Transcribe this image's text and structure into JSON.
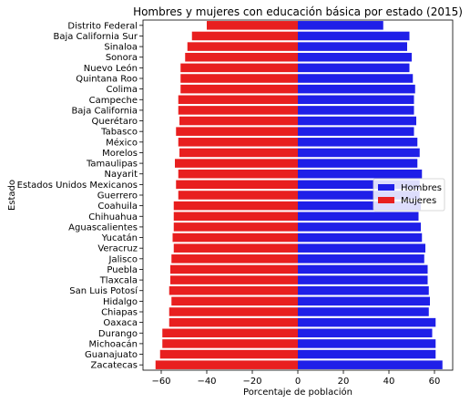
{
  "chart_data": {
    "type": "bar",
    "orientation": "horizontal",
    "title": "Hombres y mujeres con educación básica por estado (2015)",
    "xlabel": "Porcentaje de población",
    "ylabel": "Estado",
    "xlim": [
      -68,
      68
    ],
    "xticks": [
      -60,
      -40,
      -20,
      0,
      20,
      40,
      60
    ],
    "grid": false,
    "legend_position": "right",
    "categories": [
      "Distrito Federal",
      "Baja California Sur",
      "Sinaloa",
      "Sonora",
      "Nuevo León",
      "Quintana Roo",
      "Colima",
      "Campeche",
      "Baja California",
      "Querétaro",
      "Tabasco",
      "México",
      "Morelos",
      "Tamaulipas",
      "Nayarit",
      "Estados Unidos Mexicanos",
      "Guerrero",
      "Coahuila",
      "Chihuahua",
      "Aguascalientes",
      "Yucatán",
      "Veracruz",
      "Jalisco",
      "Puebla",
      "Tlaxcala",
      "San Luis Potosí",
      "Hidalgo",
      "Chiapas",
      "Oaxaca",
      "Durango",
      "Michoacán",
      "Guanajuato",
      "Zacatecas"
    ],
    "series": [
      {
        "name": "Hombres",
        "color": "#1f1fe8",
        "values": [
          37.5,
          49,
          48,
          50,
          49,
          50.5,
          51.5,
          51,
          51,
          52,
          51,
          52.5,
          53.5,
          52.5,
          54.5,
          53.5,
          53.5,
          54,
          53,
          54,
          54.5,
          56,
          55.5,
          57,
          57,
          57.5,
          58,
          57.5,
          60.5,
          59,
          60.5,
          60.5,
          63.5
        ]
      },
      {
        "name": "Mujeres",
        "color": "#e81f1f",
        "values": [
          -40,
          -46.5,
          -48.5,
          -49.5,
          -51.5,
          -51.5,
          -51.5,
          -52.5,
          -52.5,
          -52,
          -53.5,
          -52.5,
          -52,
          -54,
          -52.5,
          -53.5,
          -52.5,
          -54.5,
          -54.5,
          -54.5,
          -55,
          -54.5,
          -55.5,
          -56,
          -56,
          -56.5,
          -55.5,
          -56.5,
          -56.5,
          -59.5,
          -59.5,
          -60.5,
          -62.5
        ]
      }
    ]
  }
}
